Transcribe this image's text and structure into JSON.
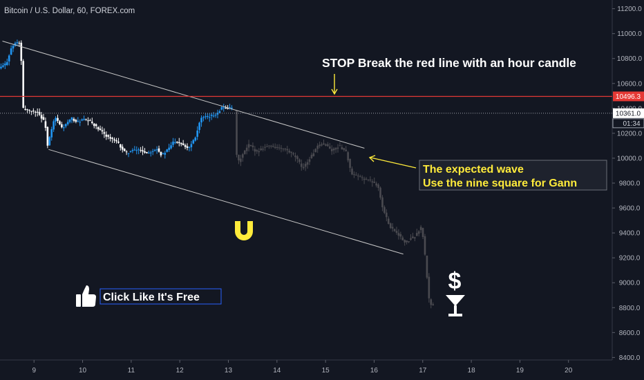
{
  "header": {
    "symbol": "Bitcoin / U.S. Dollar, 60, FOREX.com"
  },
  "annotations": {
    "stop_text": "STOP Break the red line with an hour candle",
    "wave_line1": "The expected wave",
    "wave_line2": "Use the nine square for Gann",
    "like_text": "Click Like It's Free"
  },
  "badges": {
    "red_price": "10496.3",
    "white_price": "10361.0",
    "countdown": "01:34"
  },
  "colors": {
    "background": "#131722",
    "up_candle": "#2196f3",
    "down_candle": "#ffffff",
    "projection": "#4a4a50",
    "resistance": "#e53935",
    "annotation": "#ffeb3b",
    "channel": "#c8c8c8"
  },
  "icons": [
    "thumbs-up-icon",
    "magnet-icon",
    "dollar-icon",
    "cocktail-glass-icon",
    "arrow-down-icon",
    "arrow-left-icon"
  ],
  "chart_data": {
    "type": "candlestick",
    "title": "Bitcoin / U.S. Dollar, 60, FOREX.com",
    "x_ticks": [
      "9",
      "10",
      "11",
      "12",
      "13",
      "14",
      "15",
      "16",
      "17",
      "18",
      "19",
      "20"
    ],
    "y_ticks": [
      "11200.0",
      "11000.0",
      "10800.0",
      "10600.0",
      "10400.0",
      "10200.0",
      "10000.0",
      "9800.0",
      "9600.0",
      "9400.0",
      "9200.0",
      "9000.0",
      "8800.0",
      "8600.0",
      "8400.0"
    ],
    "ylim": [
      8380,
      11270
    ],
    "xlim": [
      8.3,
      20.9
    ],
    "resistance_level": 10496.3,
    "current_price": 10361.0,
    "channel_upper": [
      [
        8.35,
        10940
      ],
      [
        15.8,
        10080
      ]
    ],
    "channel_lower": [
      [
        9.3,
        10070
      ],
      [
        16.6,
        9230
      ]
    ],
    "price_path": [
      [
        8.3,
        10720
      ],
      [
        8.45,
        10760
      ],
      [
        8.55,
        10880
      ],
      [
        8.65,
        10930
      ],
      [
        8.75,
        10920
      ],
      [
        8.78,
        10400
      ],
      [
        8.95,
        10380
      ],
      [
        9.1,
        10370
      ],
      [
        9.25,
        10280
      ],
      [
        9.3,
        10100
      ],
      [
        9.45,
        10330
      ],
      [
        9.6,
        10240
      ],
      [
        9.8,
        10320
      ],
      [
        9.9,
        10290
      ],
      [
        10.05,
        10310
      ],
      [
        10.2,
        10290
      ],
      [
        10.35,
        10230
      ],
      [
        10.55,
        10170
      ],
      [
        10.75,
        10120
      ],
      [
        10.9,
        10040
      ],
      [
        11.05,
        10060
      ],
      [
        11.2,
        10070
      ],
      [
        11.35,
        10040
      ],
      [
        11.55,
        10080
      ],
      [
        11.65,
        10020
      ],
      [
        11.8,
        10080
      ],
      [
        11.9,
        10140
      ],
      [
        12.05,
        10120
      ],
      [
        12.2,
        10080
      ],
      [
        12.35,
        10180
      ],
      [
        12.45,
        10320
      ],
      [
        12.6,
        10330
      ],
      [
        12.75,
        10350
      ],
      [
        12.9,
        10410
      ],
      [
        13.05,
        10400
      ]
    ],
    "projection_path": [
      [
        13.15,
        10380
      ],
      [
        13.2,
        9950
      ],
      [
        13.3,
        10020
      ],
      [
        13.45,
        10110
      ],
      [
        13.6,
        10050
      ],
      [
        13.75,
        10090
      ],
      [
        13.9,
        10100
      ],
      [
        14.05,
        10080
      ],
      [
        14.2,
        10070
      ],
      [
        14.4,
        10010
      ],
      [
        14.55,
        9920
      ],
      [
        14.7,
        10000
      ],
      [
        14.85,
        10090
      ],
      [
        15.0,
        10120
      ],
      [
        15.15,
        10060
      ],
      [
        15.3,
        10100
      ],
      [
        15.45,
        10050
      ],
      [
        15.55,
        9870
      ],
      [
        15.7,
        9850
      ],
      [
        15.85,
        9830
      ],
      [
        16.0,
        9810
      ],
      [
        16.1,
        9780
      ],
      [
        16.2,
        9590
      ],
      [
        16.35,
        9450
      ],
      [
        16.5,
        9400
      ],
      [
        16.65,
        9320
      ],
      [
        16.85,
        9370
      ],
      [
        17.0,
        9450
      ],
      [
        17.05,
        9290
      ],
      [
        17.15,
        8870
      ],
      [
        17.2,
        8820
      ]
    ]
  }
}
